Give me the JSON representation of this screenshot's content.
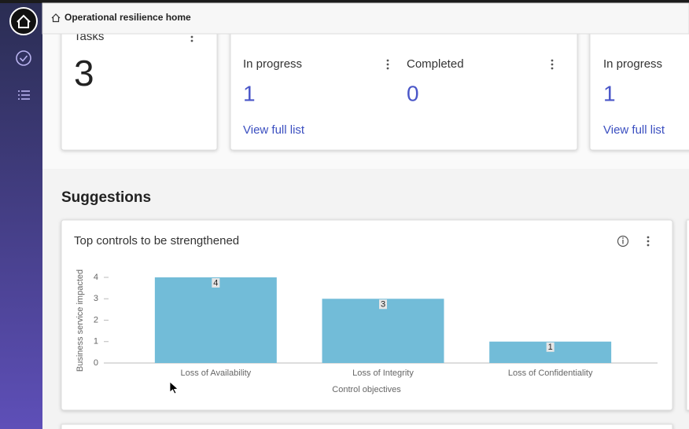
{
  "header": {
    "breadcrumb": "Operational resilience home"
  },
  "tiles": [
    {
      "title": "Tasks",
      "value": "3"
    },
    {
      "items": [
        {
          "label": "In progress",
          "value": "1"
        },
        {
          "label": "Completed",
          "value": "0"
        }
      ],
      "link": "View full list"
    },
    {
      "items": [
        {
          "label": "In progress",
          "value": "1"
        }
      ],
      "link": "View full list"
    }
  ],
  "section_title": "Suggestions",
  "chart_data": {
    "type": "bar",
    "title": "Top controls to be strengthened",
    "categories": [
      "Loss of Availability",
      "Loss of Integrity",
      "Loss of Confidentiality"
    ],
    "values": [
      4,
      3,
      1
    ],
    "color": "#72bcd8",
    "x_label": "Control objectives",
    "y_label": "Business service impacted",
    "ylim": [
      0,
      4
    ],
    "yticks": [
      0,
      1,
      2,
      3,
      4
    ]
  }
}
